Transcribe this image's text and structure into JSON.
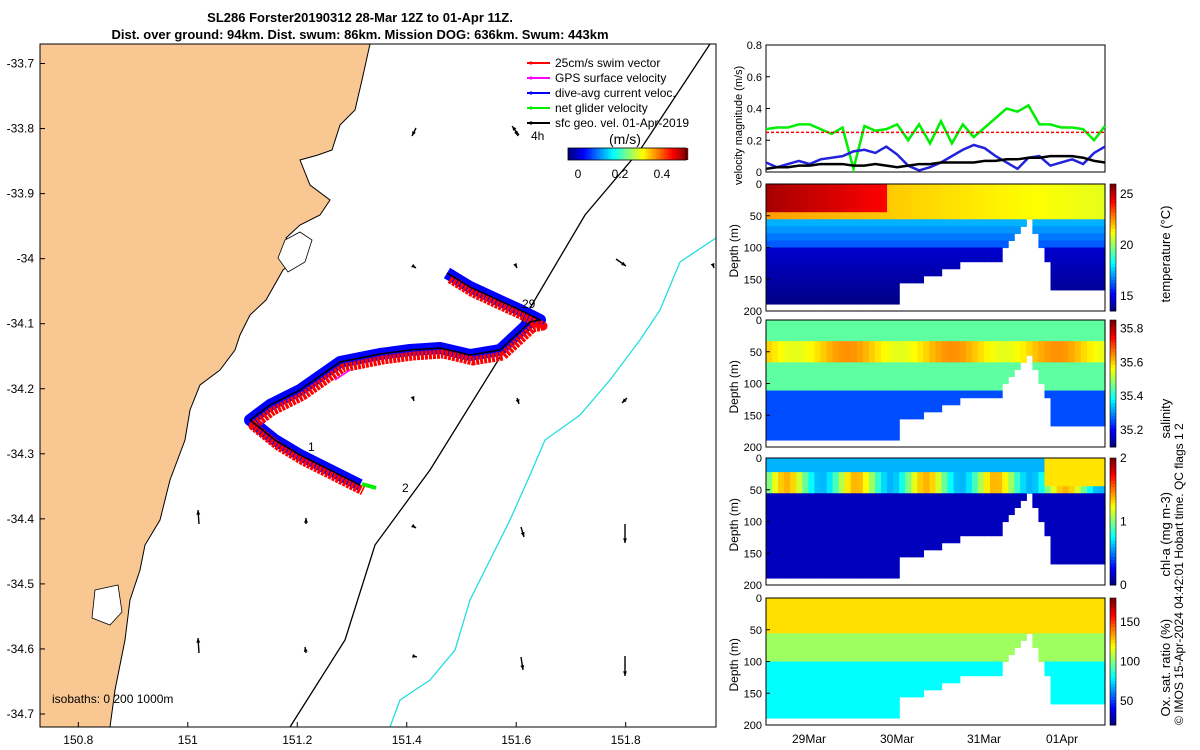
{
  "title_line1": "SL286 Forster20190312 28-Mar 12Z to 01-Apr 11Z.",
  "title_line2": "Dist. over ground: 94km. Dist. swum: 86km. Mission DOG: 636km. Swum: 443km",
  "map": {
    "lon_ticks": [
      "150.8",
      "151",
      "151.2",
      "151.4",
      "151.6",
      "151.8"
    ],
    "lat_ticks": [
      "-33.7",
      "-33.8",
      "-33.9",
      "-34",
      "-34.1",
      "-34.2",
      "-34.3",
      "-34.4",
      "-34.5",
      "-34.6",
      "-34.7"
    ],
    "legend": [
      {
        "label": "25cm/s swim vector",
        "color": "#ff0000"
      },
      {
        "label": "GPS surface velocity",
        "color": "#ff00ff"
      },
      {
        "label": "dive-avg current veloc.",
        "color": "#0000ff"
      },
      {
        "label": "net glider velocity",
        "color": "#00ee00"
      },
      {
        "label": "sfc geo. vel. 01-Apr-2019",
        "color": "#000000"
      }
    ],
    "colorbar_label": "(m/s)",
    "colorbar_ticks": [
      "0",
      "0.2",
      "0.4"
    ],
    "scale_label": "4h",
    "isobaths_label": "isobaths: 0  200  1000m",
    "day_labels": [
      "29",
      "1",
      "2"
    ],
    "land_color": "#f8c792",
    "isobath_200_color": "#000000",
    "isobath_1000_color": "#22dddd"
  },
  "copyright": "© IMOS 15-Apr-2024 04:42:01 Hobart time. QC flags 1  2",
  "chart_data": [
    {
      "type": "line",
      "ylabel": "velocity magnitude (m/s)",
      "ylim": [
        0,
        0.8
      ],
      "yticks": [
        "0",
        "0.2",
        "0.4",
        "0.6",
        "0.8"
      ],
      "x_range": [
        "28-Mar 12Z",
        "01-Apr 11Z"
      ],
      "series": [
        {
          "color": "#00ee00",
          "values": [
            0.27,
            0.28,
            0.28,
            0.3,
            0.3,
            0.27,
            0.24,
            0.28,
            0.02,
            0.29,
            0.26,
            0.27,
            0.3,
            0.2,
            0.3,
            0.18,
            0.32,
            0.18,
            0.3,
            0.22,
            0.28,
            0.34,
            0.4,
            0.38,
            0.42,
            0.3,
            0.3,
            0.28,
            0.28,
            0.27,
            0.2,
            0.29
          ]
        },
        {
          "color": "#2222dd",
          "values": [
            0.06,
            0.03,
            0.05,
            0.07,
            0.05,
            0.08,
            0.09,
            0.1,
            0.13,
            0.14,
            0.12,
            0.16,
            0.11,
            0.04,
            0.01,
            0.03,
            0.06,
            0.1,
            0.14,
            0.17,
            0.15,
            0.1,
            0.06,
            0.02,
            0.09,
            0.1,
            0.04,
            0.06,
            0.08,
            0.05,
            0.12,
            0.16
          ]
        },
        {
          "color": "#000000",
          "values": [
            0.02,
            0.03,
            0.03,
            0.04,
            0.04,
            0.05,
            0.05,
            0.05,
            0.04,
            0.04,
            0.05,
            0.04,
            0.03,
            0.04,
            0.05,
            0.05,
            0.06,
            0.06,
            0.06,
            0.06,
            0.07,
            0.07,
            0.08,
            0.08,
            0.09,
            0.09,
            0.1,
            0.1,
            0.1,
            0.09,
            0.07,
            0.06
          ]
        },
        {
          "color": "#ff0000",
          "dashed": true,
          "values": [
            0.25,
            0.25,
            0.25,
            0.25,
            0.25,
            0.25,
            0.25,
            0.25,
            0.25,
            0.25,
            0.25,
            0.25,
            0.25,
            0.25,
            0.25,
            0.25,
            0.25,
            0.25,
            0.25,
            0.25,
            0.25,
            0.25,
            0.25,
            0.25,
            0.25,
            0.25,
            0.25,
            0.25,
            0.25,
            0.25,
            0.25,
            0.25
          ]
        }
      ]
    },
    {
      "type": "heatmap",
      "ylabel": "Depth (m)",
      "yticks": [
        "0",
        "50",
        "100",
        "150",
        "200"
      ],
      "cbar_label": "temperature (°C)",
      "cbar_ticks": [
        "15",
        "20",
        "25"
      ],
      "cbar_range": [
        13.5,
        26
      ],
      "surface_value": 25,
      "bottom_value": 14,
      "surface_warm_until": 0.35
    },
    {
      "type": "heatmap",
      "ylabel": "Depth (m)",
      "yticks": [
        "0",
        "50",
        "100",
        "150",
        "200"
      ],
      "cbar_label": "salinity",
      "cbar_ticks": [
        "35.2",
        "35.4",
        "35.6",
        "35.8"
      ],
      "cbar_range": [
        35.1,
        35.85
      ],
      "surface_value": 35.55,
      "bottom_value": 35.2
    },
    {
      "type": "heatmap",
      "ylabel": "Depth (m)",
      "yticks": [
        "0",
        "50",
        "100",
        "150",
        "200"
      ],
      "cbar_label": "chl-a (mg m-3)",
      "cbar_ticks": [
        "0",
        "1",
        "2"
      ],
      "cbar_range": [
        0,
        2
      ],
      "surface_value": 0.3,
      "bottom_value": 0.05
    },
    {
      "type": "heatmap",
      "ylabel": "Depth (m)",
      "yticks": [
        "0",
        "50",
        "100",
        "150",
        "200"
      ],
      "cbar_label": "Ox. sat. ratio (%)",
      "cbar_ticks": [
        "50",
        "100",
        "150"
      ],
      "cbar_range": [
        20,
        180
      ],
      "surface_value": 110,
      "bottom_value": 80
    }
  ],
  "time_ticks": [
    "29Mar",
    "30Mar",
    "31Mar",
    "01Apr"
  ]
}
